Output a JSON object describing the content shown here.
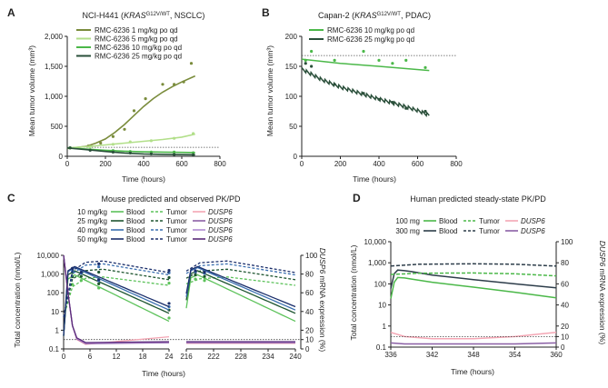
{
  "colors": {
    "olive": "#7a8c3c",
    "lightgreen": "#b2df8a",
    "green": "#4bb849",
    "darkgreen": "#2a4f3a",
    "g10": "#5cc25a",
    "g25": "#1e5530",
    "g40": "#3a6fb0",
    "g50": "#1a2e6b",
    "pk10": "#f4a6b4",
    "pk25": "#8a5fa5",
    "pk40": "#b08ad0",
    "pk50": "#5a2b7a",
    "hblue": "#6fa3d8",
    "hd300": "#2d3d4a"
  },
  "chart_data": [
    {
      "panel": "A",
      "type": "line",
      "title_pre": "NCI-H441 (",
      "title_gene": "KRAS",
      "title_sup": "G12V/WT",
      "title_post": ", NSCLC)",
      "xlabel": "Time (hours)",
      "ylabel": "Mean tumor volume (mm³)",
      "xlim": [
        0,
        800
      ],
      "ylim": [
        0,
        2000
      ],
      "xticks": [
        "0",
        "200",
        "400",
        "600",
        "800"
      ],
      "yticks": [
        "0",
        "500",
        "1,000",
        "1,500",
        "2,000"
      ],
      "threshold": 150,
      "series": [
        {
          "name": "RMC-6236 1 mg/kg po qd",
          "color": "olive",
          "x": [
            0,
            100,
            150,
            200,
            250,
            300,
            350,
            400,
            450,
            500,
            550,
            600,
            650,
            670
          ],
          "y": [
            130,
            165,
            220,
            290,
            400,
            530,
            680,
            830,
            960,
            1070,
            1160,
            1240,
            1310,
            1340
          ],
          "pts_x": [
            15,
            110,
            175,
            240,
            300,
            350,
            410,
            500,
            560,
            610,
            650
          ],
          "pts_y": [
            140,
            170,
            220,
            330,
            450,
            760,
            960,
            1200,
            1200,
            1240,
            1550
          ]
        },
        {
          "name": "RMC-6236 5 mg/kg po qd",
          "color": "lightgreen",
          "x": [
            0,
            100,
            200,
            300,
            400,
            500,
            600,
            670
          ],
          "y": [
            140,
            160,
            190,
            220,
            250,
            280,
            320,
            370
          ],
          "pts_x": [
            15,
            120,
            240,
            330,
            440,
            560,
            660
          ],
          "pts_y": [
            140,
            160,
            200,
            240,
            260,
            300,
            380
          ]
        },
        {
          "name": "RMC-6236 10 mg/kg po qd",
          "color": "green",
          "x": [
            0,
            100,
            200,
            300,
            400,
            500,
            600,
            670
          ],
          "y": [
            140,
            120,
            100,
            85,
            75,
            70,
            65,
            62
          ],
          "pts_x": [
            15,
            120,
            240,
            330,
            440,
            560,
            660
          ],
          "pts_y": [
            140,
            110,
            95,
            80,
            70,
            70,
            60
          ]
        },
        {
          "name": "RMC-6236 25 mg/kg po qd",
          "color": "darkgreen",
          "x": [
            0,
            100,
            200,
            300,
            400,
            500,
            600,
            670
          ],
          "y": [
            140,
            110,
            80,
            55,
            40,
            32,
            28,
            25
          ],
          "pts_x": [
            15,
            120,
            240,
            330,
            440,
            560,
            660
          ],
          "pts_y": [
            140,
            100,
            70,
            55,
            40,
            30,
            25
          ]
        }
      ]
    },
    {
      "panel": "B",
      "type": "line",
      "title_pre": "Capan-2 (",
      "title_gene": "KRAS",
      "title_sup": "G12V/WT",
      "title_post": ", PDAC)",
      "xlabel": "Time (hours)",
      "ylabel": "Mean tumor volume (mm³)",
      "xlim": [
        0,
        800
      ],
      "ylim": [
        0,
        200
      ],
      "xticks": [
        "0",
        "200",
        "400",
        "600",
        "800"
      ],
      "yticks": [
        "0",
        "50",
        "100",
        "150",
        "200"
      ],
      "threshold": 168,
      "series": [
        {
          "name": "RMC-6236 10 mg/kg po qd",
          "color": "green",
          "x": [
            0,
            200,
            400,
            660
          ],
          "y": [
            162,
            155,
            150,
            143
          ],
          "pts_x": [
            20,
            50,
            170,
            320,
            400,
            470,
            540,
            640
          ],
          "pts_y": [
            160,
            175,
            160,
            175,
            160,
            155,
            160,
            148
          ]
        },
        {
          "name": "RMC-6236 25 mg/kg po qd",
          "color": "darkgreen",
          "x": [
            0,
            100,
            200,
            300,
            400,
            500,
            600,
            660
          ],
          "y": [
            145,
            128,
            115,
            105,
            95,
            86,
            76,
            68
          ],
          "pts_x": [
            20,
            50,
            170,
            320,
            400,
            470,
            540,
            640
          ],
          "pts_y": [
            155,
            150,
            120,
            105,
            95,
            90,
            80,
            75
          ]
        }
      ]
    },
    {
      "panel": "C",
      "type": "line",
      "title": "Mouse predicted and observed PK/PD",
      "xlabel": "Time (hours)",
      "ylabel_left": "Total concentration (nmol/L)",
      "ylabel_right_gene": "DUSP6",
      "ylabel_right_rest": " mRNA expression (%)",
      "xticks_a": [
        "0",
        "6",
        "12",
        "18",
        "24"
      ],
      "xticks_b": [
        "216",
        "222",
        "228",
        "234",
        "240"
      ],
      "yticks_left": [
        "0.1",
        "1",
        "10",
        "100",
        "1,000",
        "10,000"
      ],
      "yticks_right": [
        "0",
        "10",
        "20",
        "40",
        "60",
        "80",
        "100"
      ],
      "legend_rows": [
        {
          "dose": "10 mg/kg",
          "blood": "Blood",
          "tumor": "Tumor",
          "gene": "DUSP6",
          "blood_color": "g10",
          "tumor_color": "g10",
          "gene_color": "pk10"
        },
        {
          "dose": "25 mg/kg",
          "blood": "Blood",
          "tumor": "Tumor",
          "gene": "DUSP6",
          "blood_color": "g25",
          "tumor_color": "g25",
          "gene_color": "pk25"
        },
        {
          "dose": "40 mg/kg",
          "blood": "Blood",
          "tumor": "Tumor",
          "gene": "DUSP6",
          "blood_color": "g40",
          "tumor_color": "g40",
          "gene_color": "pk40"
        },
        {
          "dose": "50 mg/kg",
          "blood": "Blood",
          "tumor": "Tumor",
          "gene": "DUSP6",
          "blood_color": "g50",
          "tumor_color": "g50",
          "gene_color": "pk50"
        }
      ],
      "blood_peak": [
        900,
        1500,
        2200,
        2500
      ],
      "blood_end": [
        3,
        8,
        12,
        18
      ],
      "tumor_peak": [
        700,
        1800,
        3500,
        5000
      ],
      "tumor_end": [
        250,
        500,
        900,
        1200
      ],
      "dusp6_floor": 5,
      "threshold_pct": 10
    },
    {
      "panel": "D",
      "type": "line",
      "title": "Human predicted steady-state PK/PD",
      "xlabel": "Time (hours)",
      "ylabel_left": "Total concentration (nmol/L)",
      "ylabel_right_gene": "DUSP6",
      "ylabel_right_rest": " mRNA expression (%)",
      "xticks": [
        "336",
        "342",
        "348",
        "354",
        "360"
      ],
      "yticks_left": [
        "0.1",
        "1",
        "10",
        "100",
        "1,000",
        "10,000"
      ],
      "yticks_right": [
        "0",
        "10",
        "20",
        "40",
        "60",
        "80",
        "100"
      ],
      "legend_rows": [
        {
          "dose": "100 mg",
          "blood": "Blood",
          "tumor": "Tumor",
          "gene": "DUSP6",
          "blood_color": "green",
          "tumor_color": "green",
          "gene_color": "pk10"
        },
        {
          "dose": "300 mg",
          "blood": "Blood",
          "tumor": "Tumor",
          "gene": "DUSP6",
          "blood_color": "hd300",
          "tumor_color": "hd300",
          "gene_color": "pk25"
        }
      ],
      "series": [
        {
          "name": "100 mg Blood",
          "x": [
            336,
            336.5,
            337,
            338,
            339,
            342,
            348,
            354,
            360
          ],
          "y": [
            20,
            120,
            200,
            190,
            170,
            120,
            70,
            40,
            22
          ]
        },
        {
          "name": "300 mg Blood",
          "x": [
            336,
            336.5,
            337,
            338,
            339,
            342,
            348,
            354,
            360
          ],
          "y": [
            60,
            300,
            450,
            420,
            380,
            260,
            160,
            100,
            65
          ]
        },
        {
          "name": "100 mg Tumor",
          "x": [
            336,
            340,
            348,
            354,
            360
          ],
          "y": [
            280,
            320,
            330,
            300,
            240
          ]
        },
        {
          "name": "300 mg Tumor",
          "x": [
            336,
            340,
            348,
            354,
            360
          ],
          "y": [
            700,
            850,
            900,
            850,
            700
          ]
        },
        {
          "name": "100 mg DUSP6 (%)",
          "x": [
            336,
            338,
            342,
            348,
            354,
            360
          ],
          "y": [
            14,
            10,
            8,
            8,
            10,
            14
          ]
        },
        {
          "name": "300 mg DUSP6 (%)",
          "x": [
            336,
            338,
            342,
            348,
            354,
            360
          ],
          "y": [
            4,
            3,
            3,
            3,
            3,
            4
          ]
        }
      ]
    }
  ]
}
